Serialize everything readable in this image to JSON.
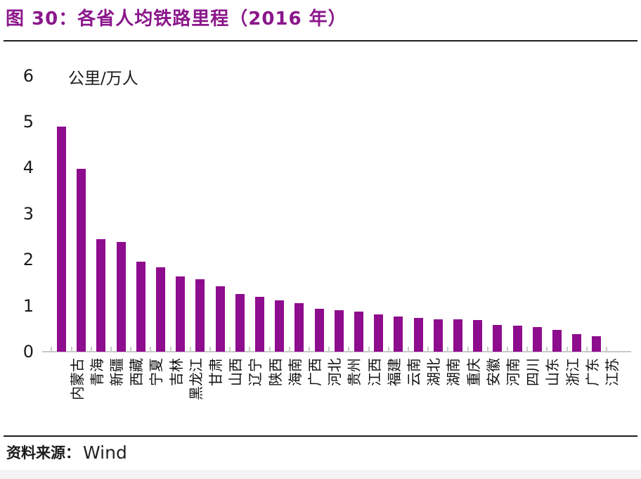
{
  "header": {
    "title": "图 30：各省人均铁路里程（2016 年）"
  },
  "source": {
    "prefix": "资料来源：",
    "name": "Wind"
  },
  "colors": {
    "bar": "#8E0C8E",
    "title": "#8B178B",
    "axis": "#C9C9C9"
  },
  "chart_data": {
    "type": "bar",
    "title": "各省人均铁路里程（2016 年）",
    "unit_label": "公里/万人",
    "xlabel": "",
    "ylabel": "公里/万人",
    "ylim": [
      0,
      6
    ],
    "yticks": [
      0,
      1,
      2,
      3,
      4,
      5,
      6
    ],
    "grid": false,
    "legend": "none",
    "bar_color": "#8E0C8E",
    "categories": [
      "内蒙古",
      "青海",
      "新疆",
      "西藏",
      "宁夏",
      "吉林",
      "黑龙江",
      "甘肃",
      "山西",
      "辽宁",
      "陕西",
      "海南",
      "广西",
      "河北",
      "贵州",
      "江西",
      "福建",
      "云南",
      "湖北",
      "湖南",
      "重庆",
      "安徽",
      "河南",
      "四川",
      "山东",
      "浙江",
      "广东",
      "江苏"
    ],
    "values": [
      4.9,
      3.98,
      2.45,
      2.38,
      1.95,
      1.84,
      1.63,
      1.57,
      1.42,
      1.26,
      1.19,
      1.12,
      1.05,
      0.93,
      0.9,
      0.87,
      0.81,
      0.76,
      0.73,
      0.71,
      0.7,
      0.69,
      0.58,
      0.57,
      0.54,
      0.47,
      0.38,
      0.34
    ]
  }
}
